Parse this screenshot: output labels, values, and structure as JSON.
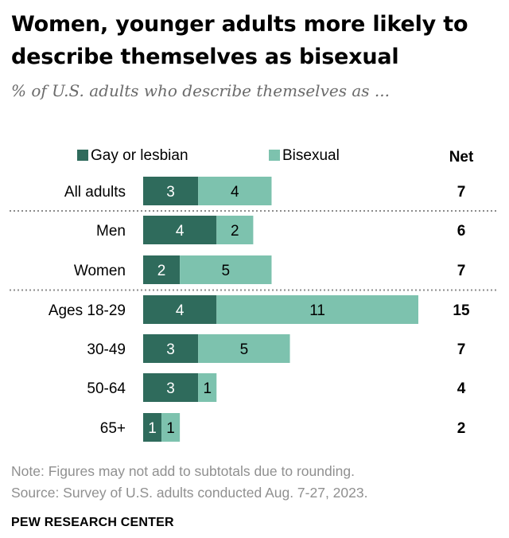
{
  "title": "Women, younger adults more likely to describe themselves as bisexual",
  "subtitle": "% of U.S. adults who describe themselves as ...",
  "notes": {
    "note": "Note: Figures may not add to subtotals due to rounding.",
    "source": "Source: Survey of U.S. adults conducted Aug. 7-27, 2023."
  },
  "brand": "PEW RESEARCH CENTER",
  "colors": {
    "gay": "#2f6b5c",
    "bisexual": "#7dc2ae",
    "divider": "#8c8c8c"
  },
  "chart_data": {
    "type": "bar",
    "orientation": "horizontal",
    "stacked": true,
    "categories": [
      "All adults",
      "Men",
      "Women",
      "Ages 18-29",
      "30-49",
      "50-64",
      "65+"
    ],
    "series": [
      {
        "name": "Gay or lesbian",
        "values": [
          3,
          4,
          2,
          4,
          3,
          3,
          1
        ]
      },
      {
        "name": "Bisexual",
        "values": [
          4,
          2,
          5,
          11,
          5,
          1,
          1
        ]
      }
    ],
    "net_label": "Net",
    "net": [
      7,
      6,
      7,
      15,
      7,
      4,
      2
    ],
    "groups_after": [
      0,
      2
    ],
    "xlim": [
      0,
      15
    ],
    "legend_position": "top"
  }
}
